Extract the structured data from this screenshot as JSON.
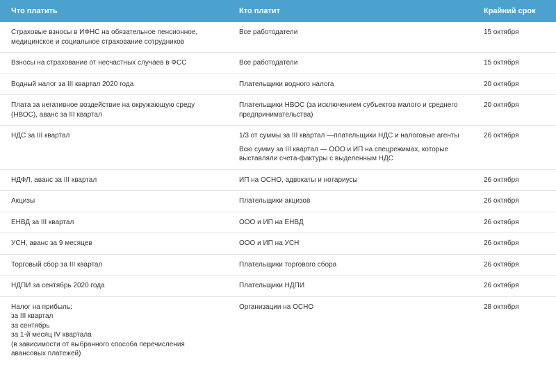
{
  "table": {
    "columns": [
      "Что платить",
      "Кто платит",
      "Крайний срок"
    ],
    "header_bg": "#4ca2cf",
    "header_fg": "#ffffff",
    "header_fontsize": 11,
    "cell_fontsize": 10,
    "cell_fg": "#333333",
    "border_color": "#e5e5e5",
    "col_widths_pct": [
      41,
      44,
      15
    ],
    "rows": [
      {
        "what": [
          "Страховые взносы в ИФНС на обязательное пенсионное, медицинское и социальное страхование сотрудников"
        ],
        "who": [
          "Все работодатели"
        ],
        "due": "15 октября"
      },
      {
        "what": [
          "Взносы на страхование от несчастных случаев в ФСС"
        ],
        "who": [
          "Все работодатели"
        ],
        "due": "15 октября"
      },
      {
        "what": [
          "Водный налог за III квартал 2020 года"
        ],
        "who": [
          "Плательщики водного налога"
        ],
        "due": "20 октября"
      },
      {
        "what": [
          "Плата за негативное воздействие на окружающую среду (НВОС), аванс за III квартал"
        ],
        "who": [
          "Плательщики НВОС (за исключением субъектов малого и среднего предпринимательства)"
        ],
        "due": "20 октября"
      },
      {
        "what": [
          "НДС за III квартал"
        ],
        "who": [
          "1/3 от суммы за III квартал —плательщики НДС и налоговые агенты",
          "Всю сумму за III квартал — ООО и ИП на спецрежимах, которые выставляли счета-фактуры с выделенным НДС"
        ],
        "due": "26 октября"
      },
      {
        "what": [
          "НДФЛ, аванс за III квартал"
        ],
        "who": [
          "ИП на ОСНО, адвокаты и нотариусы"
        ],
        "due": "26 октября"
      },
      {
        "what": [
          "Акцизы"
        ],
        "who": [
          "Плательщики акцизов"
        ],
        "due": "26 октября"
      },
      {
        "what": [
          "ЕНВД за III квартал"
        ],
        "who": [
          "ООО и ИП на ЕНВД"
        ],
        "due": "26 октября"
      },
      {
        "what": [
          "УСН, аванс за 9 месяцев"
        ],
        "who": [
          "ООО и ИП на УСН"
        ],
        "due": "26 октября"
      },
      {
        "what": [
          "Торговый сбор за III квартал"
        ],
        "who": [
          "Плательщики торгового сбора"
        ],
        "due": "26 октября"
      },
      {
        "what": [
          "НДПИ за сентябрь 2020 года"
        ],
        "who": [
          "Плательщики НДПИ"
        ],
        "due": "26 октября"
      },
      {
        "what": [
          "Налог на прибыль:\nза III квартал\nза сентябрь\nза 1-й месяц IV квартала\n(в зависимости от выбранного способа перечисления авансовых платежей)"
        ],
        "who": [
          "Организации на ОСНО"
        ],
        "due": "28 октября"
      }
    ]
  }
}
